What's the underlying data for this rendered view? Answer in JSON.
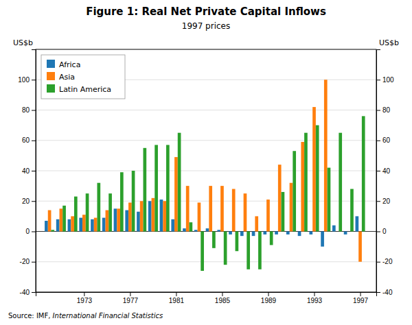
{
  "chart_data": {
    "type": "bar",
    "title": "Figure 1: Real Net Private Capital Inflows",
    "subtitle": "1997 prices",
    "ylabel": "US$b",
    "y2label": "US$b",
    "source": [
      "Source: IMF, ",
      "International Financial Statistics"
    ],
    "x": [
      1970,
      1971,
      1972,
      1973,
      1974,
      1975,
      1976,
      1977,
      1978,
      1979,
      1980,
      1981,
      1982,
      1983,
      1984,
      1985,
      1986,
      1987,
      1988,
      1989,
      1990,
      1991,
      1992,
      1993,
      1994,
      1995,
      1996,
      1997
    ],
    "series": [
      {
        "name": "Africa",
        "values": [
          7,
          8,
          8,
          9,
          8,
          9,
          15,
          14,
          13,
          20,
          21,
          8,
          2,
          1,
          2,
          1,
          -2,
          -3,
          -3,
          -2,
          -2,
          -2,
          -3,
          -2,
          -10,
          4,
          -2,
          10
        ]
      },
      {
        "name": "Asia",
        "values": [
          14,
          15,
          10,
          11,
          9,
          14,
          15,
          19,
          20,
          22,
          20,
          49,
          30,
          19,
          30,
          30,
          28,
          25,
          10,
          21,
          44,
          32,
          59,
          82,
          100,
          0,
          0,
          -20
        ]
      },
      {
        "name": "Latin America",
        "values": [
          1,
          17,
          23,
          25,
          32,
          25,
          39,
          40,
          55,
          57,
          57,
          65,
          6,
          -26,
          -11,
          -22,
          -13,
          -25,
          -25,
          -9,
          26,
          53,
          65,
          70,
          42,
          65,
          28,
          76
        ]
      }
    ],
    "xlim": [
      1968.8,
      1998.4
    ],
    "xticks": [
      1973,
      1977,
      1981,
      1985,
      1989,
      1993,
      1997
    ],
    "ylim": [
      -40,
      120
    ],
    "yticks": [
      -40,
      -20,
      0,
      20,
      40,
      60,
      80,
      100
    ],
    "y2lim": [
      -40,
      120
    ],
    "y2ticks": [
      -40,
      -20,
      0,
      20,
      40,
      60,
      80,
      100
    ],
    "grid": true,
    "legend": "upper left"
  }
}
